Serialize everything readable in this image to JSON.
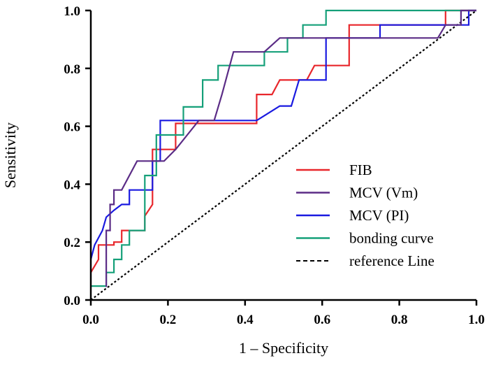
{
  "chart_data": {
    "type": "line",
    "title": "",
    "xlabel": "1 – Specificity",
    "ylabel": "Sensitivity",
    "xlim": [
      0,
      1
    ],
    "ylim": [
      0,
      1
    ],
    "x_ticks": [
      "0.0",
      "0.2",
      "0.4",
      "0.6",
      "0.8",
      "1.0"
    ],
    "y_ticks": [
      "0.0",
      "0.2",
      "0.4",
      "0.6",
      "0.8",
      "1.0"
    ],
    "grid": false,
    "legend_position": "bottom-right",
    "series": [
      {
        "name": "FIB",
        "color": "#e8262b",
        "style": "solid",
        "points": [
          [
            0,
            0.095
          ],
          [
            0.02,
            0.14
          ],
          [
            0.02,
            0.19
          ],
          [
            0.06,
            0.19
          ],
          [
            0.06,
            0.2
          ],
          [
            0.08,
            0.2
          ],
          [
            0.08,
            0.24
          ],
          [
            0.14,
            0.24
          ],
          [
            0.14,
            0.29
          ],
          [
            0.16,
            0.33
          ],
          [
            0.16,
            0.52
          ],
          [
            0.19,
            0.52
          ],
          [
            0.19,
            0.52
          ],
          [
            0.22,
            0.52
          ],
          [
            0.22,
            0.61
          ],
          [
            0.43,
            0.61
          ],
          [
            0.43,
            0.71
          ],
          [
            0.47,
            0.71
          ],
          [
            0.49,
            0.76
          ],
          [
            0.55,
            0.76
          ],
          [
            0.55,
            0.76
          ],
          [
            0.56,
            0.76
          ],
          [
            0.58,
            0.81
          ],
          [
            0.65,
            0.81
          ],
          [
            0.67,
            0.81
          ],
          [
            0.67,
            0.95
          ],
          [
            0.92,
            0.95
          ],
          [
            0.92,
            1.0
          ],
          [
            1.0,
            1.0
          ]
        ]
      },
      {
        "name": "MCV (Vm)",
        "color": "#5b2c86",
        "style": "solid",
        "points": [
          [
            0.04,
            0.045
          ],
          [
            0.04,
            0.24
          ],
          [
            0.05,
            0.24
          ],
          [
            0.05,
            0.33
          ],
          [
            0.06,
            0.33
          ],
          [
            0.06,
            0.38
          ],
          [
            0.08,
            0.38
          ],
          [
            0.12,
            0.48
          ],
          [
            0.19,
            0.48
          ],
          [
            0.22,
            0.52
          ],
          [
            0.28,
            0.62
          ],
          [
            0.32,
            0.62
          ],
          [
            0.34,
            0.71
          ],
          [
            0.37,
            0.857
          ],
          [
            0.45,
            0.857
          ],
          [
            0.49,
            0.905
          ],
          [
            0.9,
            0.905
          ],
          [
            0.92,
            0.95
          ],
          [
            0.96,
            0.95
          ],
          [
            0.96,
            1.0
          ],
          [
            1.0,
            1.0
          ]
        ]
      },
      {
        "name": "MCV (PI)",
        "color": "#1a1ae0",
        "style": "solid",
        "points": [
          [
            0,
            0.14
          ],
          [
            0.01,
            0.19
          ],
          [
            0.03,
            0.24
          ],
          [
            0.04,
            0.286
          ],
          [
            0.06,
            0.31
          ],
          [
            0.08,
            0.33
          ],
          [
            0.1,
            0.33
          ],
          [
            0.1,
            0.38
          ],
          [
            0.16,
            0.38
          ],
          [
            0.16,
            0.48
          ],
          [
            0.18,
            0.48
          ],
          [
            0.18,
            0.62
          ],
          [
            0.43,
            0.62
          ],
          [
            0.49,
            0.67
          ],
          [
            0.52,
            0.67
          ],
          [
            0.54,
            0.76
          ],
          [
            0.61,
            0.76
          ],
          [
            0.61,
            0.905
          ],
          [
            0.75,
            0.905
          ],
          [
            0.75,
            0.95
          ],
          [
            0.98,
            0.95
          ],
          [
            0.98,
            1.0
          ],
          [
            1.0,
            1.0
          ]
        ]
      },
      {
        "name": "bonding curve",
        "color": "#15a079",
        "style": "solid",
        "points": [
          [
            0,
            0.048
          ],
          [
            0.04,
            0.048
          ],
          [
            0.04,
            0.095
          ],
          [
            0.06,
            0.095
          ],
          [
            0.06,
            0.14
          ],
          [
            0.08,
            0.14
          ],
          [
            0.08,
            0.19
          ],
          [
            0.1,
            0.19
          ],
          [
            0.1,
            0.24
          ],
          [
            0.14,
            0.24
          ],
          [
            0.14,
            0.43
          ],
          [
            0.17,
            0.43
          ],
          [
            0.17,
            0.57
          ],
          [
            0.21,
            0.57
          ],
          [
            0.21,
            0.57
          ],
          [
            0.24,
            0.57
          ],
          [
            0.24,
            0.667
          ],
          [
            0.29,
            0.667
          ],
          [
            0.29,
            0.76
          ],
          [
            0.33,
            0.76
          ],
          [
            0.33,
            0.81
          ],
          [
            0.45,
            0.81
          ],
          [
            0.45,
            0.857
          ],
          [
            0.51,
            0.857
          ],
          [
            0.51,
            0.905
          ],
          [
            0.55,
            0.905
          ],
          [
            0.55,
            0.95
          ],
          [
            0.61,
            0.95
          ],
          [
            0.61,
            1.0
          ],
          [
            1.0,
            1.0
          ]
        ]
      },
      {
        "name": "reference Line",
        "color": "#000000",
        "style": "dashed",
        "points": [
          [
            0,
            0
          ],
          [
            1,
            1
          ]
        ]
      }
    ]
  }
}
